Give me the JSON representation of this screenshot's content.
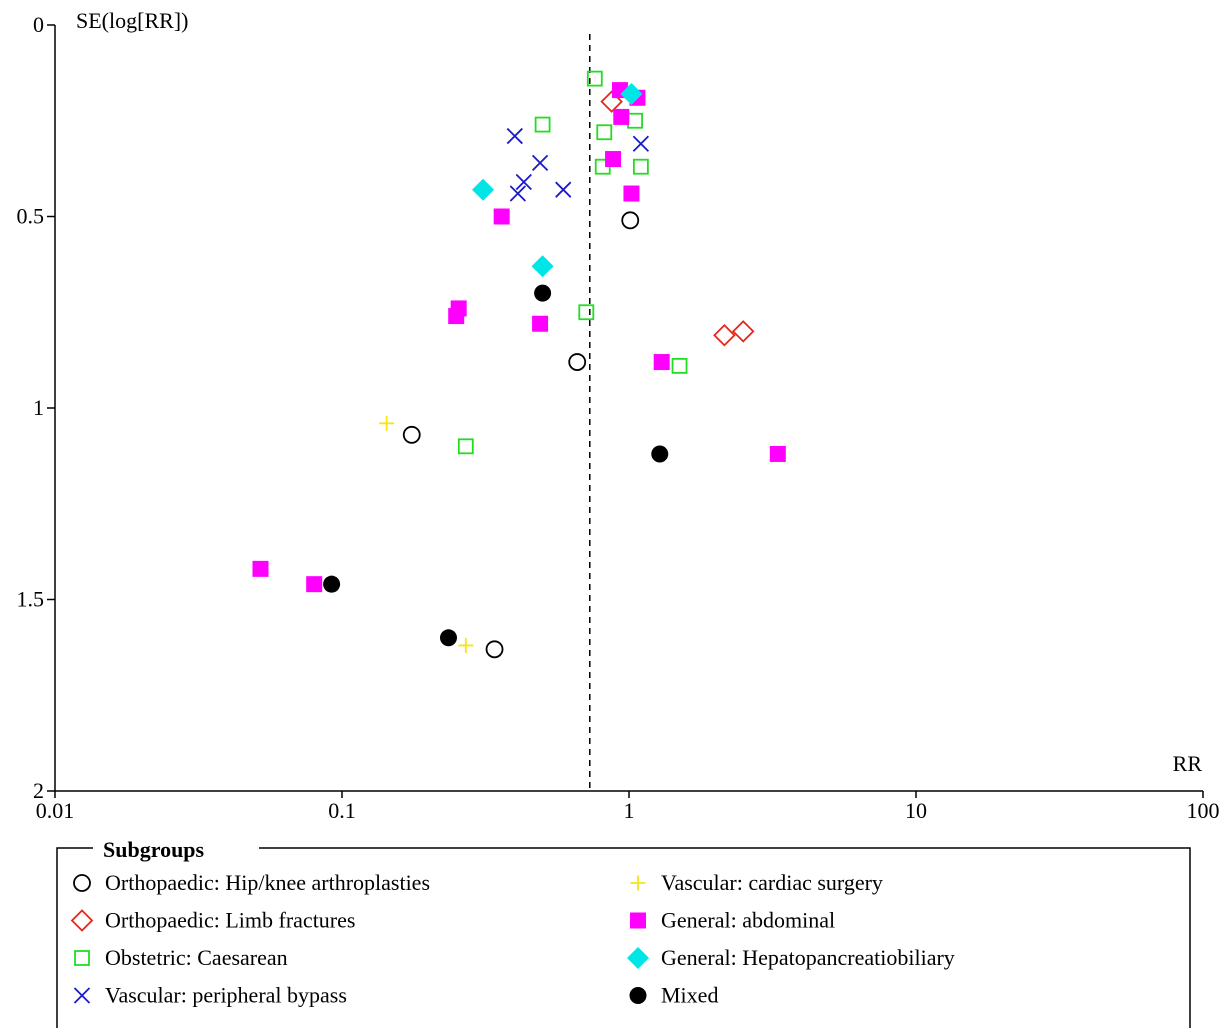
{
  "chart_data": {
    "type": "scatter",
    "title": "",
    "xlabel": "RR",
    "ylabel": "SE(log[RR])",
    "x_scale": "log",
    "xlim": [
      0.01,
      100
    ],
    "ylim": [
      0,
      2
    ],
    "y_inverted": true,
    "x_ticks": [
      {
        "value": 0.01,
        "label": "0.01"
      },
      {
        "value": 0.1,
        "label": "0.1"
      },
      {
        "value": 1,
        "label": "1"
      },
      {
        "value": 10,
        "label": "10"
      },
      {
        "value": 100,
        "label": "100"
      }
    ],
    "y_ticks": [
      {
        "value": 0,
        "label": "0"
      },
      {
        "value": 0.5,
        "label": "0.5"
      },
      {
        "value": 1,
        "label": "1"
      },
      {
        "value": 1.5,
        "label": "1.5"
      },
      {
        "value": 2,
        "label": "2"
      }
    ],
    "reference_line": {
      "x": 0.73,
      "style": "dashed"
    },
    "grid": false,
    "legend_title": "Subgroups",
    "legend_placement": "bottom",
    "series": [
      {
        "name": "Orthopaedic: Hip/knee arthroplasties",
        "marker": "open-circle",
        "color": "#000000",
        "points": [
          [
            1.01,
            0.51
          ],
          [
            0.66,
            0.88
          ],
          [
            0.175,
            1.07
          ],
          [
            0.34,
            1.63
          ]
        ]
      },
      {
        "name": "Orthopaedic: Limb fractures",
        "marker": "open-diamond",
        "color": "#e8271b",
        "points": [
          [
            0.87,
            0.2
          ],
          [
            2.15,
            0.81
          ],
          [
            2.5,
            0.8
          ]
        ]
      },
      {
        "name": "Obstetric: Caesarean",
        "marker": "open-square",
        "color": "#22dd22",
        "points": [
          [
            0.76,
            0.14
          ],
          [
            0.5,
            0.26
          ],
          [
            0.82,
            0.28
          ],
          [
            1.05,
            0.25
          ],
          [
            0.81,
            0.37
          ],
          [
            1.1,
            0.37
          ],
          [
            0.71,
            0.75
          ],
          [
            1.5,
            0.89
          ],
          [
            0.27,
            1.1
          ]
        ]
      },
      {
        "name": "Vascular: peripheral bypass",
        "marker": "x",
        "color": "#1a1acc",
        "points": [
          [
            0.4,
            0.29
          ],
          [
            0.49,
            0.36
          ],
          [
            0.43,
            0.41
          ],
          [
            0.41,
            0.44
          ],
          [
            0.59,
            0.43
          ],
          [
            1.1,
            0.31
          ]
        ]
      },
      {
        "name": "Vascular: cardiac surgery",
        "marker": "plus",
        "color": "#f5e614",
        "points": [
          [
            0.143,
            1.04
          ],
          [
            0.27,
            1.62
          ]
        ]
      },
      {
        "name": "General: abdominal",
        "marker": "filled-square",
        "color": "#ff00ff",
        "points": [
          [
            0.93,
            0.17
          ],
          [
            1.07,
            0.19
          ],
          [
            0.94,
            0.24
          ],
          [
            0.88,
            0.35
          ],
          [
            1.02,
            0.44
          ],
          [
            0.36,
            0.5
          ],
          [
            0.255,
            0.74
          ],
          [
            0.25,
            0.76
          ],
          [
            0.49,
            0.78
          ],
          [
            1.3,
            0.88
          ],
          [
            3.3,
            1.12
          ],
          [
            0.052,
            1.42
          ],
          [
            0.08,
            1.46
          ]
        ]
      },
      {
        "name": "General: Hepatopancreatiobiliary",
        "marker": "filled-diamond",
        "color": "#00e5e5",
        "points": [
          [
            1.02,
            0.18
          ],
          [
            0.31,
            0.43
          ],
          [
            0.5,
            0.63
          ]
        ]
      },
      {
        "name": "Mixed",
        "marker": "filled-circle",
        "color": "#000000",
        "points": [
          [
            0.5,
            0.7
          ],
          [
            1.28,
            1.12
          ],
          [
            0.092,
            1.46
          ],
          [
            0.235,
            1.6
          ]
        ]
      }
    ]
  }
}
